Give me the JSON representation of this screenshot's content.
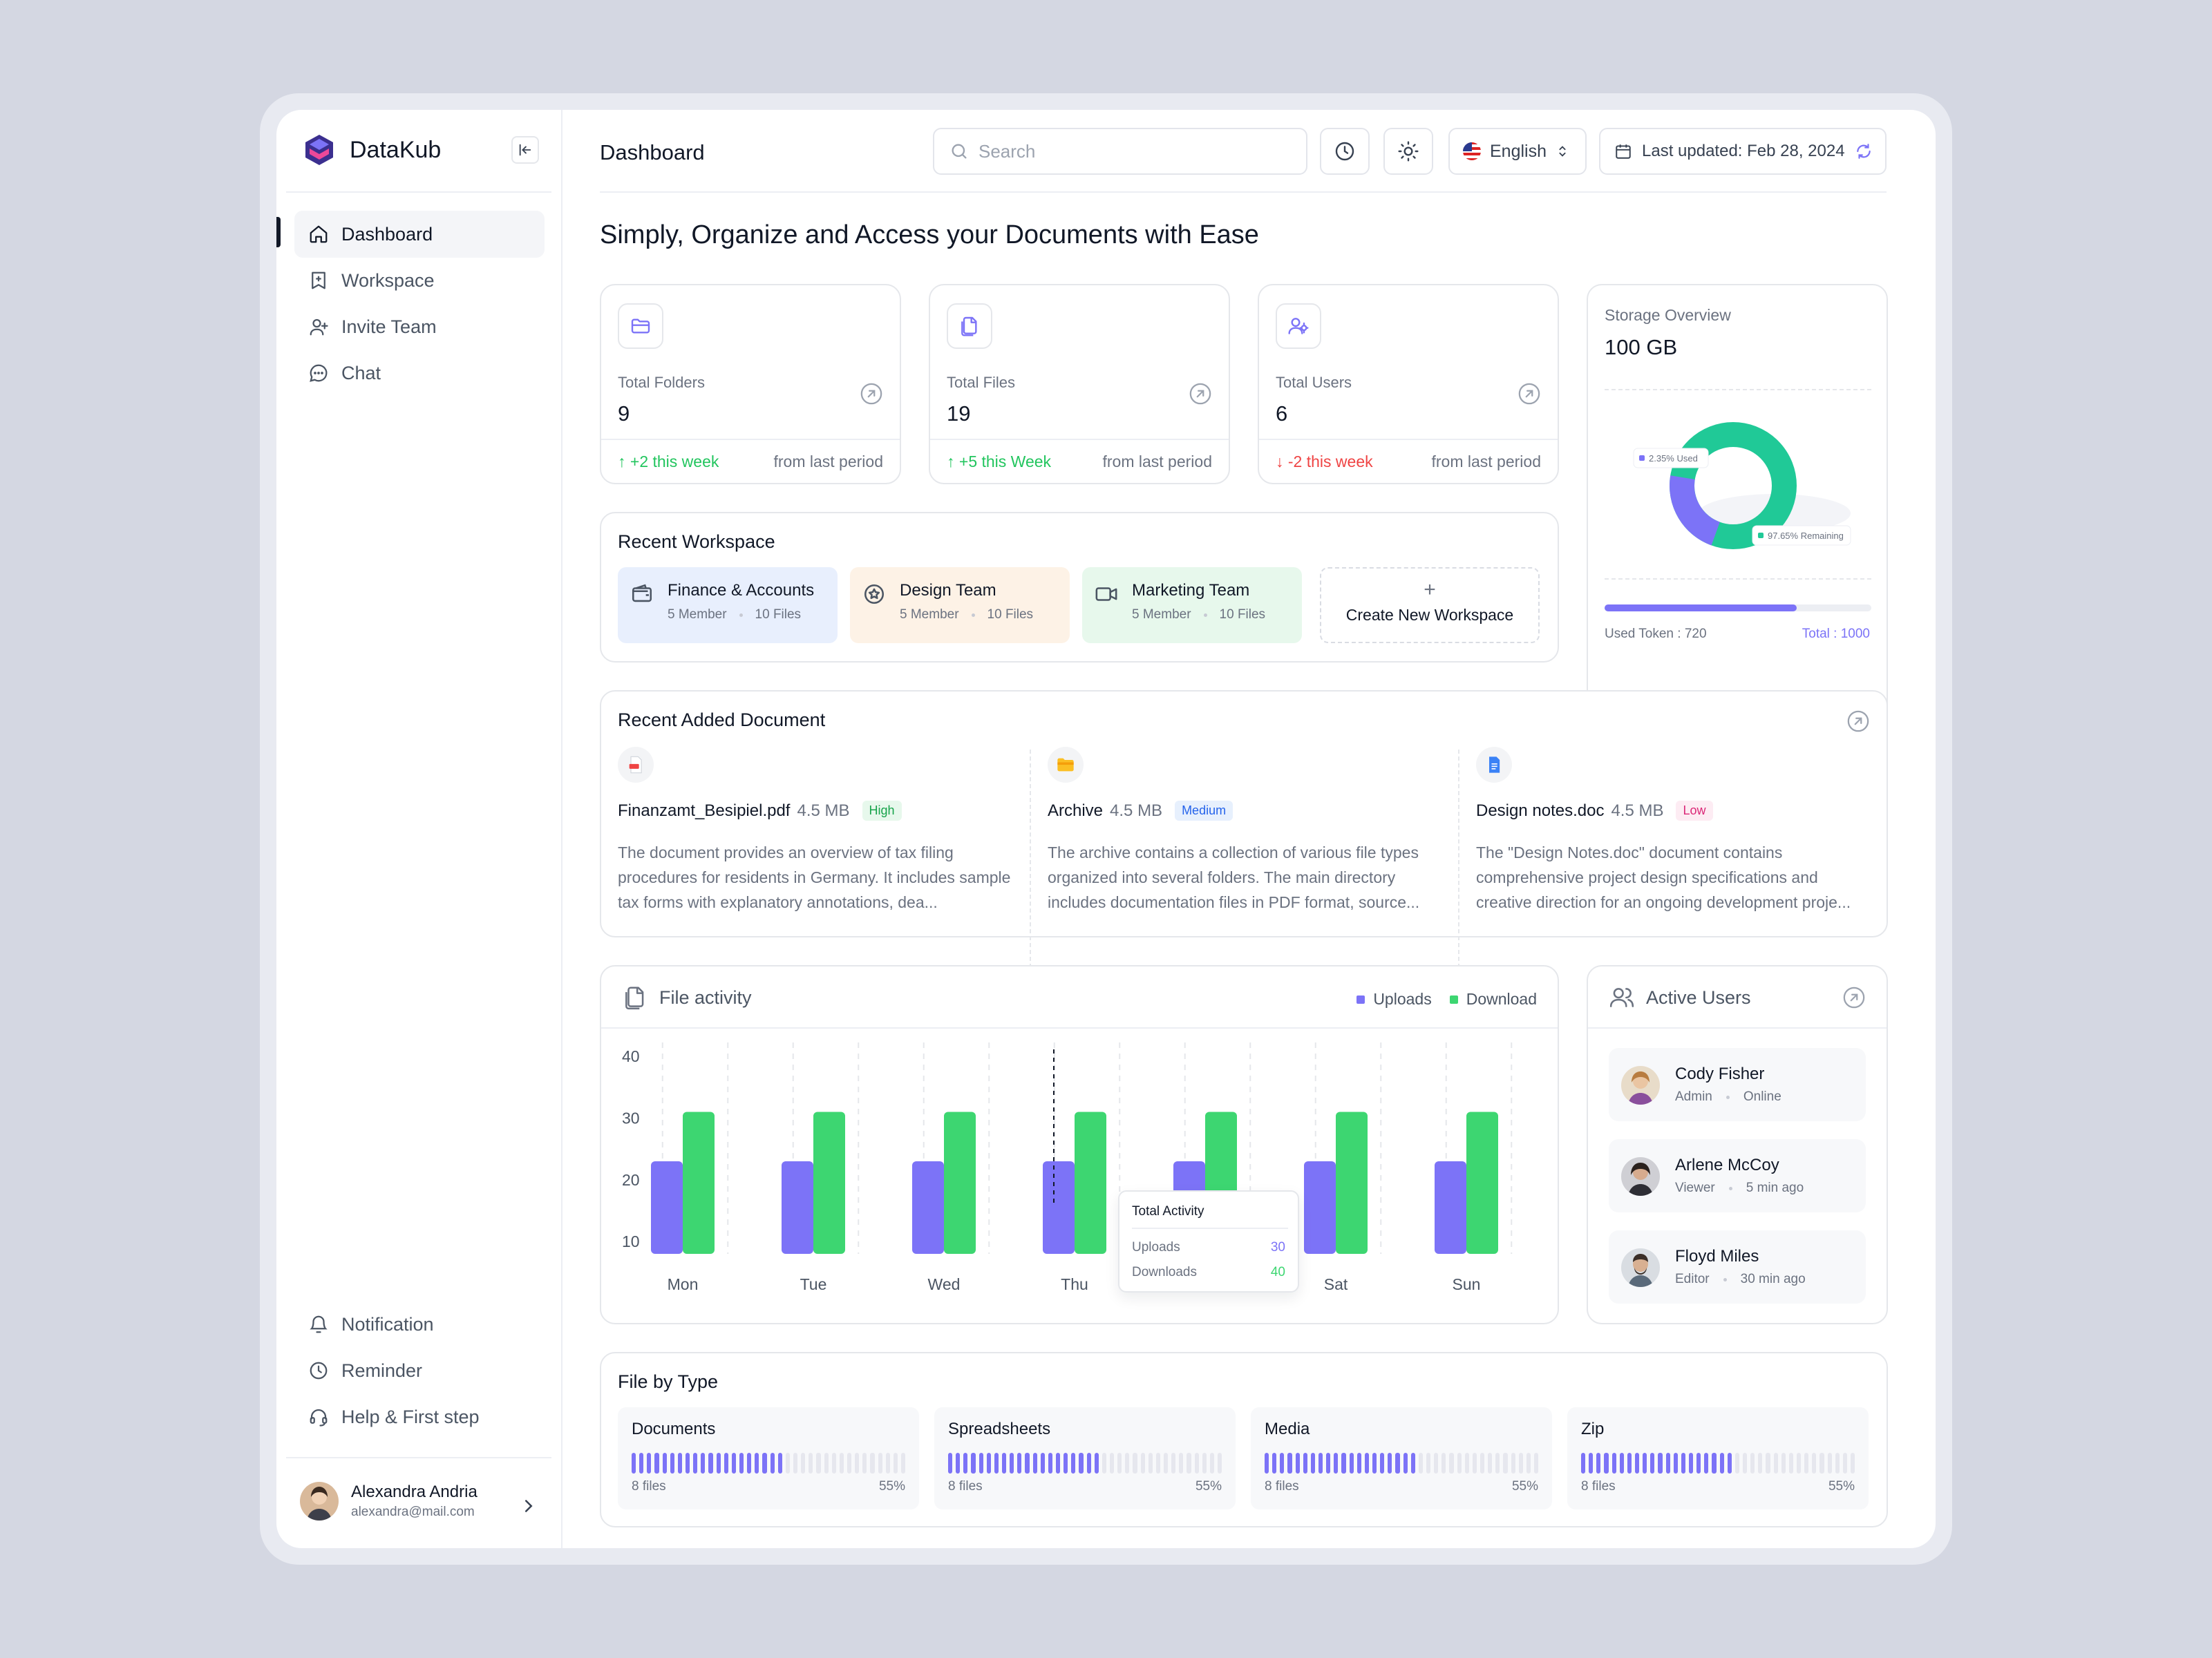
{
  "app": {
    "name": "DataKub"
  },
  "colors": {
    "accent": "#7c73f7",
    "green": "#3dd671",
    "teal": "#20c997"
  },
  "sidebar": {
    "items": [
      {
        "label": "Dashboard",
        "icon": "home-icon",
        "active": true
      },
      {
        "label": "Workspace",
        "icon": "bookmark-plus-icon"
      },
      {
        "label": "Invite Team",
        "icon": "user-plus-icon"
      },
      {
        "label": "Chat",
        "icon": "chat-bubble-icon"
      }
    ],
    "bottom_items": [
      {
        "label": "Notification",
        "icon": "bell-icon"
      },
      {
        "label": "Reminder",
        "icon": "clock-icon"
      },
      {
        "label": "Help & First step",
        "icon": "headset-icon"
      }
    ],
    "profile": {
      "name": "Alexandra Andria",
      "email": "alexandra@mail.com"
    }
  },
  "header": {
    "title": "Dashboard",
    "search_placeholder": "Search",
    "language": "English",
    "last_updated": "Last updated: Feb 28, 2024"
  },
  "headline": "Simply, Organize and Access your Documents with Ease",
  "stats": [
    {
      "label": "Total Folders",
      "value": "9",
      "change": "+2 this week",
      "direction": "up",
      "suffix": "from last period",
      "icon": "folder-icon"
    },
    {
      "label": "Total Files",
      "value": "19",
      "change": "+5 this Week",
      "direction": "up",
      "suffix": "from last period",
      "icon": "file-icon"
    },
    {
      "label": "Total Users",
      "value": "6",
      "change": "-2 this week",
      "direction": "down",
      "suffix": "from last period",
      "icon": "users-icon"
    }
  ],
  "storage": {
    "title": "Storage Overview",
    "total": "100 GB",
    "used_label": "2.35% Used",
    "remaining_label": "97.65% Remaining",
    "used_percent": 2.35,
    "token_used_label": "Used Token : 720",
    "token_total_label": "Total : 1000",
    "token_fraction": 0.72
  },
  "workspace": {
    "title": "Recent Workspace",
    "items": [
      {
        "name": "Finance & Accounts",
        "members": "5 Member",
        "files": "10 Files",
        "icon": "wallet-icon",
        "bg": "#e8effd"
      },
      {
        "name": "Design Team",
        "members": "5 Member",
        "files": "10 Files",
        "icon": "star-badge-icon",
        "bg": "#fdf2e6"
      },
      {
        "name": "Marketing Team",
        "members": "5 Member",
        "files": "10 Files",
        "icon": "video-icon",
        "bg": "#e7f8ec"
      }
    ],
    "create_label": "Create New Workspace",
    "create_plus": "+"
  },
  "documents": {
    "title": "Recent Added Document",
    "items": [
      {
        "name": "Finanzamt_Besipiel.pdf",
        "size": "4.5 MB",
        "priority": "High",
        "icon": "pdf-file-icon",
        "desc": "The document provides an overview of tax filing procedures for residents in Germany. It includes sample tax forms with explanatory annotations, dea..."
      },
      {
        "name": "Archive",
        "size": "4.5 MB",
        "priority": "Medium",
        "icon": "folder-icon",
        "desc": "The archive contains a collection of various file types organized into several folders. The main directory includes documentation files in PDF format, source..."
      },
      {
        "name": "Design notes.doc",
        "size": "4.5 MB",
        "priority": "Low",
        "icon": "doc-file-icon",
        "desc": "The \"Design Notes.doc\" document contains comprehensive project design specifications and creative direction for an ongoing development proje..."
      }
    ]
  },
  "activity": {
    "title": "File activity",
    "legend": [
      "Uploads",
      "Download"
    ],
    "tooltip": {
      "title": "Total Activity",
      "uploads_label": "Uploads",
      "uploads_value": "30",
      "downloads_label": "Downloads",
      "downloads_value": "40"
    }
  },
  "chart_data": {
    "type": "bar",
    "categories": [
      "Mon",
      "Tue",
      "Wed",
      "Thu",
      "Fri",
      "Sat",
      "Sun"
    ],
    "series": [
      {
        "name": "Uploads",
        "values": [
          23,
          23,
          23,
          23,
          23,
          23,
          23
        ],
        "color": "#7c73f7"
      },
      {
        "name": "Download",
        "values": [
          31,
          31,
          31,
          31,
          31,
          31,
          31
        ],
        "color": "#3dd671"
      }
    ],
    "yticks": [
      40,
      30,
      20,
      10
    ],
    "ylim": [
      8,
      40
    ],
    "grid": "vertical dashed",
    "legend": "top-right"
  },
  "active_users": {
    "title": "Active Users",
    "items": [
      {
        "name": "Cody Fisher",
        "role": "Admin",
        "status": "Online",
        "color": "#c79a6c"
      },
      {
        "name": "Arlene McCoy",
        "role": "Viewer",
        "status": "5 min ago",
        "color": "#5b4a48"
      },
      {
        "name": "Floyd Miles",
        "role": "Editor",
        "status": "30 min ago",
        "color": "#8a7a6c"
      }
    ]
  },
  "file_types": {
    "title": "File by Type",
    "items": [
      {
        "name": "Documents",
        "files": "8 files",
        "percent": "55%",
        "fraction": 0.55
      },
      {
        "name": "Spreadsheets",
        "files": "8 files",
        "percent": "55%",
        "fraction": 0.55
      },
      {
        "name": "Media",
        "files": "8 files",
        "percent": "55%",
        "fraction": 0.55
      },
      {
        "name": "Zip",
        "files": "8 files",
        "percent": "55%",
        "fraction": 0.55
      }
    ]
  }
}
